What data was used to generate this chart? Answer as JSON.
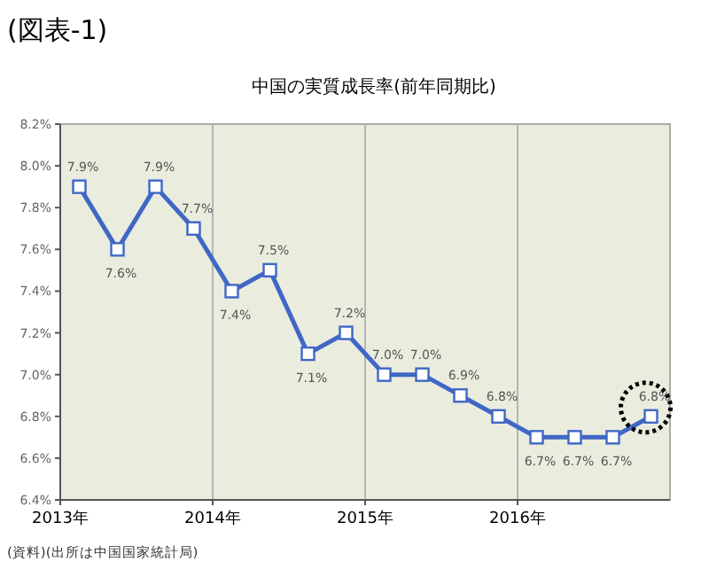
{
  "chart_data": {
    "type": "line",
    "title": "中国の実質成長率(前年同期比)",
    "annotations": [
      "(図表-1)",
      "(資料)(出所は中国国家統計局)"
    ],
    "x": [
      2013.125,
      2013.375,
      2013.625,
      2013.875,
      2014.125,
      2014.375,
      2014.625,
      2014.875,
      2015.125,
      2015.375,
      2015.625,
      2015.875,
      2016.125,
      2016.375,
      2016.625,
      2016.875
    ],
    "series": [
      {
        "color": "#3f67c6",
        "values": [
          7.9,
          7.6,
          7.9,
          7.7,
          7.4,
          7.5,
          7.1,
          7.2,
          7.0,
          7.0,
          6.9,
          6.8,
          6.7,
          6.7,
          6.7,
          6.8
        ],
        "value_labels": [
          "7.9%",
          "7.6%",
          "7.9%",
          "7.7%",
          "7.4%",
          "7.5%",
          "7.1%",
          "7.2%",
          "7.0%",
          "7.0%",
          "6.9%",
          "6.8%",
          "6.7%",
          "6.7%",
          "6.7%",
          "6.8%"
        ]
      }
    ],
    "xlim": [
      2013,
      2017
    ],
    "xticks": [
      {
        "value": 2013,
        "label": "2013年"
      },
      {
        "value": 2014,
        "label": "2014年"
      },
      {
        "value": 2015,
        "label": "2015年"
      },
      {
        "value": 2016,
        "label": "2016年"
      }
    ],
    "ylim": [
      6.4,
      8.2
    ],
    "yticks": [
      {
        "value": 6.4,
        "label": "6.4%"
      },
      {
        "value": 6.6,
        "label": "6.6%"
      },
      {
        "value": 6.8,
        "label": "6.8%"
      },
      {
        "value": 7.0,
        "label": "7.0%"
      },
      {
        "value": 7.2,
        "label": "7.2%"
      },
      {
        "value": 7.4,
        "label": "7.4%"
      },
      {
        "value": 7.6,
        "label": "7.6%"
      },
      {
        "value": 7.8,
        "label": "7.8%"
      },
      {
        "value": 8.0,
        "label": "8.0%"
      },
      {
        "value": 8.2,
        "label": "8.2%"
      }
    ],
    "grid": "x",
    "marker": "square",
    "line_style": "solid"
  }
}
